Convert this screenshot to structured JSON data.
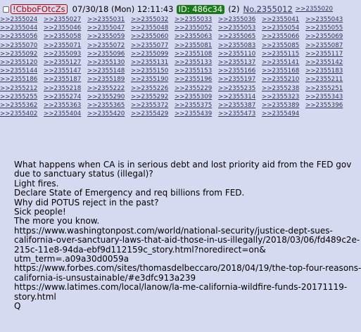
{
  "header": {
    "tripcode": "!CbboFOtcZs",
    "datetime": "07/30/18 (Mon) 12:11:43",
    "id_label": "ID: 486c34",
    "reply_count": "(2)",
    "post_number": "No.2355012",
    "first_backlink": ">>2355020"
  },
  "backlink_rows": [
    [
      ">>2355024",
      ">>2355027",
      ">>2355031",
      ">>2355032",
      ">>2355033",
      ">>2355036",
      ">>2355041",
      ">>2355043"
    ],
    [
      ">>2355044",
      ">>2355046",
      ">>2355047",
      ">>2355048",
      ">>2355052",
      ">>2355053",
      ">>2355054",
      ">>2355055"
    ],
    [
      ">>2355056",
      ">>2355058",
      ">>2355059",
      ">>2355060",
      ">>2355063",
      ">>2355065",
      ">>2355066",
      ">>2355069"
    ],
    [
      ">>2355070",
      ">>2355071",
      ">>2355072",
      ">>2355077",
      ">>2355081",
      ">>2355083",
      ">>2355085",
      ">>2355087"
    ],
    [
      ">>2355092",
      ">>2355093",
      ">>2355096",
      ">>2355099",
      ">>2355108",
      ">>2355110",
      ">>2355115",
      ">>2355117"
    ],
    [
      ">>2355120",
      ">>2355127",
      ">>2355130",
      ">>2355131",
      ">>2355133",
      ">>2355137",
      ">>2355141",
      ">>2355142"
    ],
    [
      ">>2355144",
      ">>2355147",
      ">>2355148",
      ">>2355150",
      ">>2355153",
      ">>2355166",
      ">>2355168",
      ">>2355183"
    ],
    [
      ">>2355186",
      ">>2355187",
      ">>2355189",
      ">>2355190",
      ">>2355196",
      ">>2355197",
      ">>2355210",
      ">>2355211"
    ],
    [
      ">>2355212",
      ">>2355218",
      ">>2355222",
      ">>2355226",
      ">>2355229",
      ">>2355235",
      ">>2355238",
      ">>2355251"
    ],
    [
      ">>2355255",
      ">>2355274",
      ">>2355290",
      ">>2355292",
      ">>2355309",
      ">>2355314",
      ">>2355323",
      ">>2355343"
    ],
    [
      ">>2355362",
      ">>2355363",
      ">>2355365",
      ">>2355372",
      ">>2355375",
      ">>2355387",
      ">>2355389",
      ">>2355396"
    ],
    [
      ">>2355402",
      ">>2355404",
      ">>2355420",
      ">>2355429",
      ">>2355439",
      ">>2355473",
      ">>2355494"
    ]
  ],
  "body_lines": [
    "What happens when CA is in serious debt and lost priority aid from the FED gov",
    "due to sanctuary status (illegal)?",
    "Light fires.",
    "Declare State of Emergency and req billions from FED.",
    "Why did POTUS reject in the past?",
    "Sick people!",
    "The more you know.",
    "https://www.washingtonpost.com/world/national-security/justice-dept-sues-",
    "california-over-sanctuary-laws-that-aid-those-in-us-illegally/2018/03/06/fd489c2e-",
    "215c-11e8-94da-ebf9d112159c_story.html?noredirect=on&",
    "utm_term=.a09a30d0059a",
    "https://www.forbes.com/sites/thomasdelbeccaro/2018/04/19/the-top-four-reasons-",
    "california-is-unsustainable/#e3dfc913a239",
    "https://www.latimes.com/local/lanow/la-me-california-wildfire-funds-20171119-",
    "story.html",
    "Q"
  ],
  "colors": {
    "background": "#d6daf0",
    "tripcode": "#b40000",
    "id_badge": "#1a7a1a",
    "link": "#34345c"
  }
}
